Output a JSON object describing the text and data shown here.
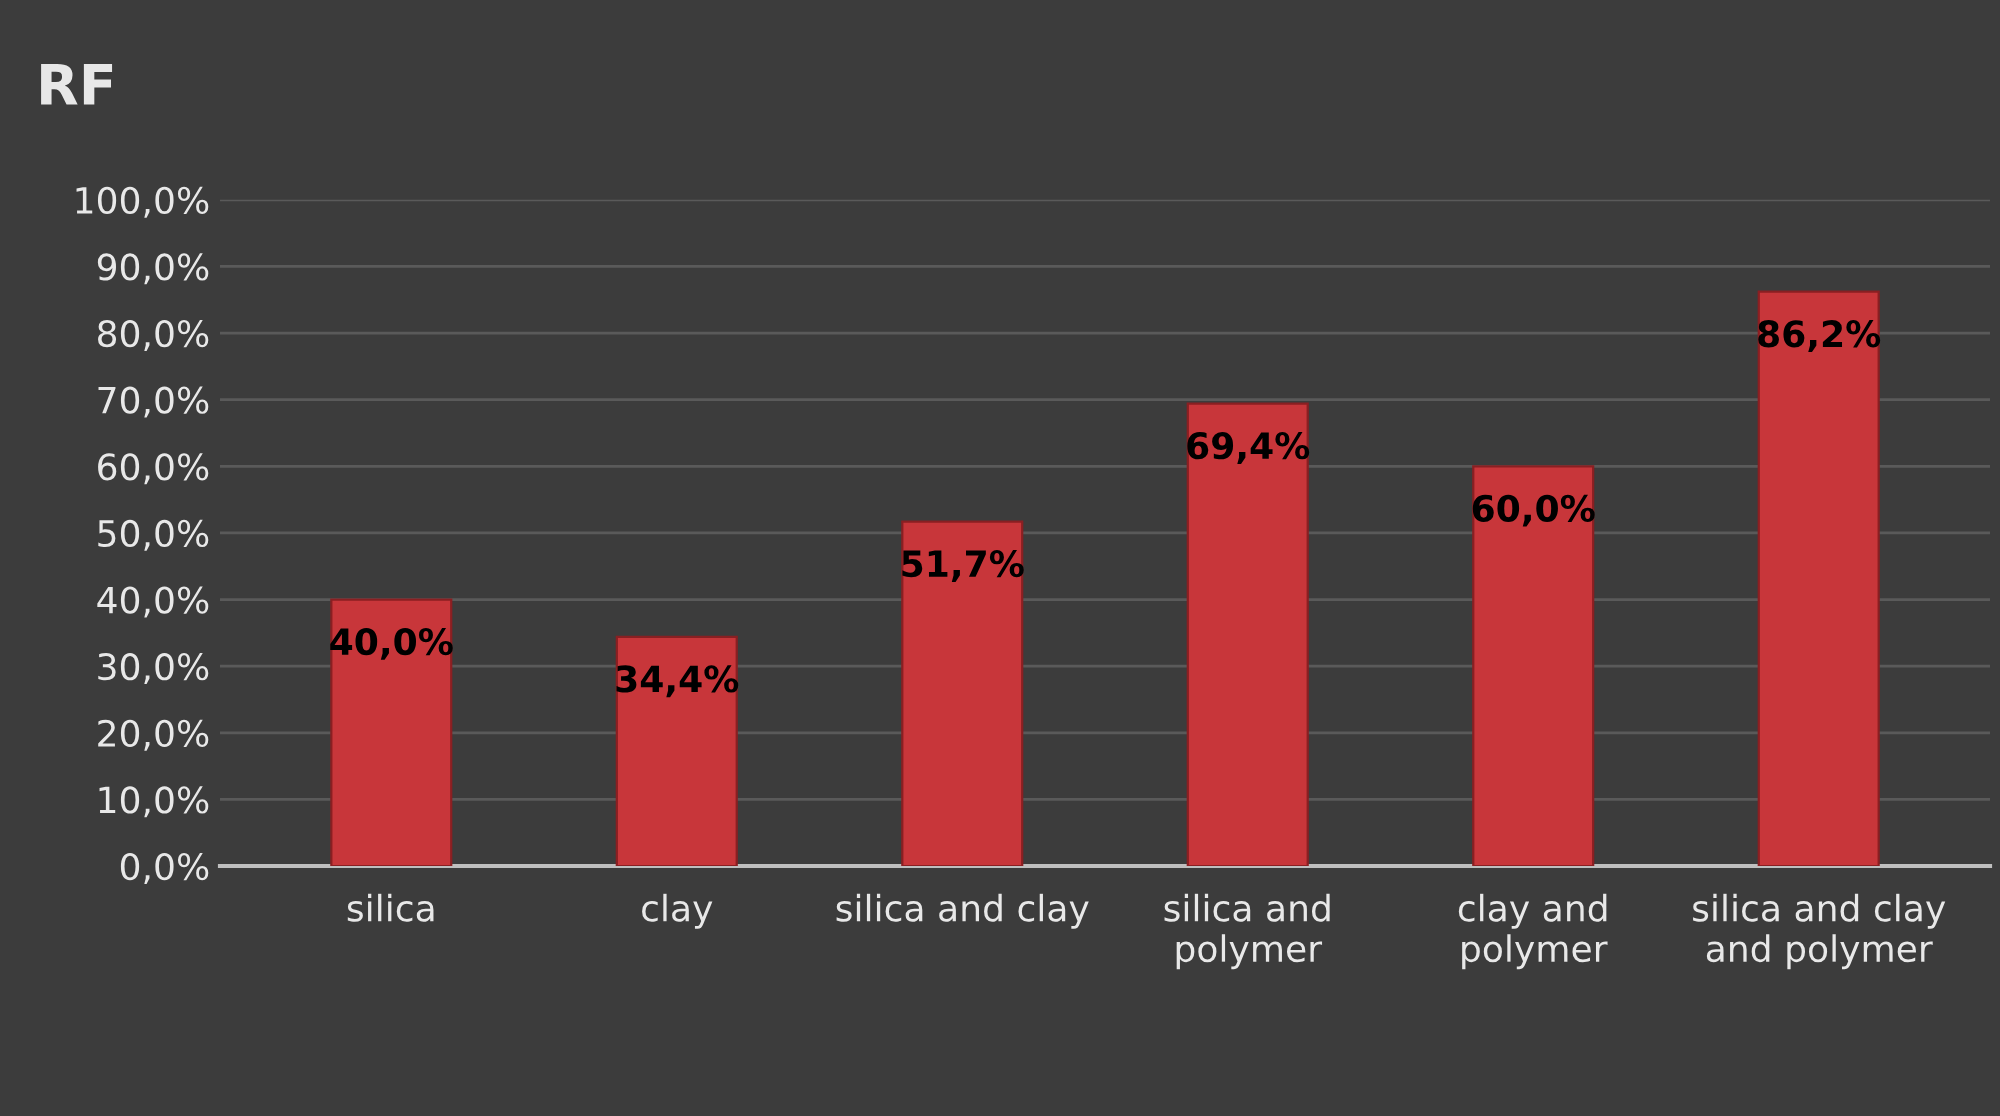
{
  "chart_data": {
    "type": "bar",
    "title": "RF",
    "categories": [
      "silica",
      "clay",
      "silica and clay",
      "silica and\npolymer",
      "clay and\npolymer",
      "silica and clay\nand polymer"
    ],
    "values": [
      40.0,
      34.4,
      51.7,
      69.4,
      60.0,
      86.2
    ],
    "value_labels": [
      "40,0%",
      "34,4%",
      "51,7%",
      "69,4%",
      "60,0%",
      "86,2%"
    ],
    "color": "#c8363a",
    "ylim": [
      0,
      100
    ],
    "yticks": [
      {
        "value": 0,
        "label": "0,0%"
      },
      {
        "value": 10,
        "label": "10,0%"
      },
      {
        "value": 20,
        "label": "20,0%"
      },
      {
        "value": 30,
        "label": "30,0%"
      },
      {
        "value": 40,
        "label": "40,0%"
      },
      {
        "value": 50,
        "label": "50,0%"
      },
      {
        "value": 60,
        "label": "60,0%"
      },
      {
        "value": 70,
        "label": "70,0%"
      },
      {
        "value": 80,
        "label": "80,0%"
      },
      {
        "value": 90,
        "label": "90,0%"
      },
      {
        "value": 100,
        "label": "100,0%"
      }
    ],
    "grid": "y",
    "legend": false
  }
}
